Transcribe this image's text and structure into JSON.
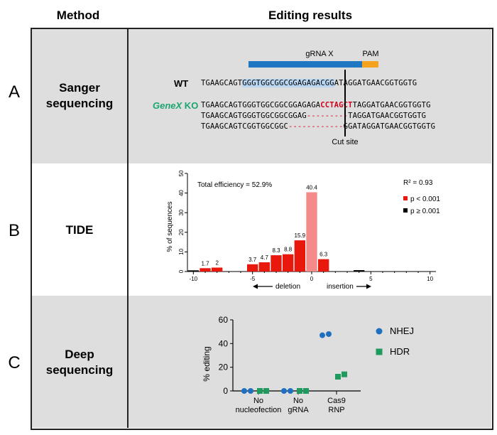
{
  "headers": {
    "method": "Method",
    "results": "Editing results"
  },
  "rows": {
    "a": {
      "letter": "A",
      "method_line1": "Sanger",
      "method_line2": "sequencing"
    },
    "b": {
      "letter": "B",
      "method": "TIDE"
    },
    "c": {
      "letter": "C",
      "method_line1": "Deep",
      "method_line2": "sequencing"
    }
  },
  "sanger": {
    "grna_label": "gRNA X",
    "pam_label": "PAM",
    "wt_label": "WT",
    "ko_gene": "GeneX",
    "ko_suffix": " KO",
    "wt": {
      "pre": "TGAAGCAGT",
      "grna": "GGGTGGCGGCGGAGAGA",
      "pam": "CGG",
      "post": "ATAGGATGAACGGTGGTG"
    },
    "ko1": {
      "pre": "TGAAGCAGTGGGTGGCGGCGGAGAGA",
      "insert": "CCTAGCT",
      "post": "TAGGATGAACGGTGGTG"
    },
    "ko2": {
      "pre": "TGAAGCAGTGGGTGGCGGCGGAG",
      "gap": "---------",
      "post": "TAGGATGAACGGTGGTG"
    },
    "ko3": {
      "pre": "TGAAGCAGTCGGTGGCGGC",
      "gap": "------------",
      "post": "GGATAGGATGAACGGTGGTG"
    },
    "cut_label": "Cut site",
    "colors": {
      "grna_bar": "#1f77c4",
      "pam_bar": "#f5a21e",
      "grna_highlight": "#b9d7f2",
      "insert": "#d0021b",
      "gene": "#1aa66e"
    }
  },
  "chart_data": [
    {
      "type": "bar",
      "name": "TIDE",
      "xlabel_left": "deletion",
      "xlabel_right": "insertion",
      "ylabel": "% of sequences",
      "xlim": [
        -10.5,
        10.5
      ],
      "ylim": [
        0,
        50
      ],
      "xticks": [
        -10,
        -5,
        0,
        5,
        10
      ],
      "yticks": [
        0,
        10,
        20,
        30,
        40,
        50
      ],
      "annotation": "Total efficiency = 52.9%",
      "legend": {
        "r2": "R² = 0.93",
        "sig": "p < 0.001",
        "nonsig": "p ≥ 0.001"
      },
      "colors": {
        "sig": "#e8180c",
        "zero": "#f48a8a",
        "nonsig": "#000000"
      },
      "bars": [
        {
          "x": -10,
          "value": 0.6,
          "label": "",
          "class": "nonsig"
        },
        {
          "x": -9,
          "value": 1.7,
          "label": "1.7",
          "class": "sig"
        },
        {
          "x": -8,
          "value": 2,
          "label": "2",
          "class": "sig"
        },
        {
          "x": -5,
          "value": 3.7,
          "label": "3.7",
          "class": "sig"
        },
        {
          "x": -4,
          "value": 4.7,
          "label": "4.7",
          "class": "sig"
        },
        {
          "x": -3,
          "value": 8.3,
          "label": "8.3",
          "class": "sig"
        },
        {
          "x": -2,
          "value": 8.8,
          "label": "8.8",
          "class": "sig"
        },
        {
          "x": -1,
          "value": 15.9,
          "label": "15.9",
          "class": "sig"
        },
        {
          "x": 0,
          "value": 40.4,
          "label": "40.4",
          "class": "zero"
        },
        {
          "x": 1,
          "value": 6.3,
          "label": "6.3",
          "class": "sig"
        },
        {
          "x": 4,
          "value": 0.7,
          "label": "",
          "class": "nonsig"
        }
      ]
    },
    {
      "type": "scatter",
      "name": "Deep sequencing",
      "ylabel": "% editing",
      "ylim": [
        0,
        60
      ],
      "yticks": [
        0,
        20,
        40,
        60
      ],
      "groups": [
        {
          "label1": "No",
          "label2": "nucleofection"
        },
        {
          "label1": "No",
          "label2": "gRNA"
        },
        {
          "label1": "Cas9",
          "label2": "RNP"
        }
      ],
      "series": [
        {
          "name": "NHEJ",
          "color": "#1f6fc0",
          "shape": "circle",
          "values": [
            [
              0,
              0
            ],
            [
              0,
              0
            ],
            [
              47,
              48
            ]
          ]
        },
        {
          "name": "HDR",
          "color": "#1f9a5e",
          "shape": "square",
          "values": [
            [
              0,
              0
            ],
            [
              0,
              0
            ],
            [
              12,
              14
            ]
          ]
        }
      ]
    }
  ]
}
